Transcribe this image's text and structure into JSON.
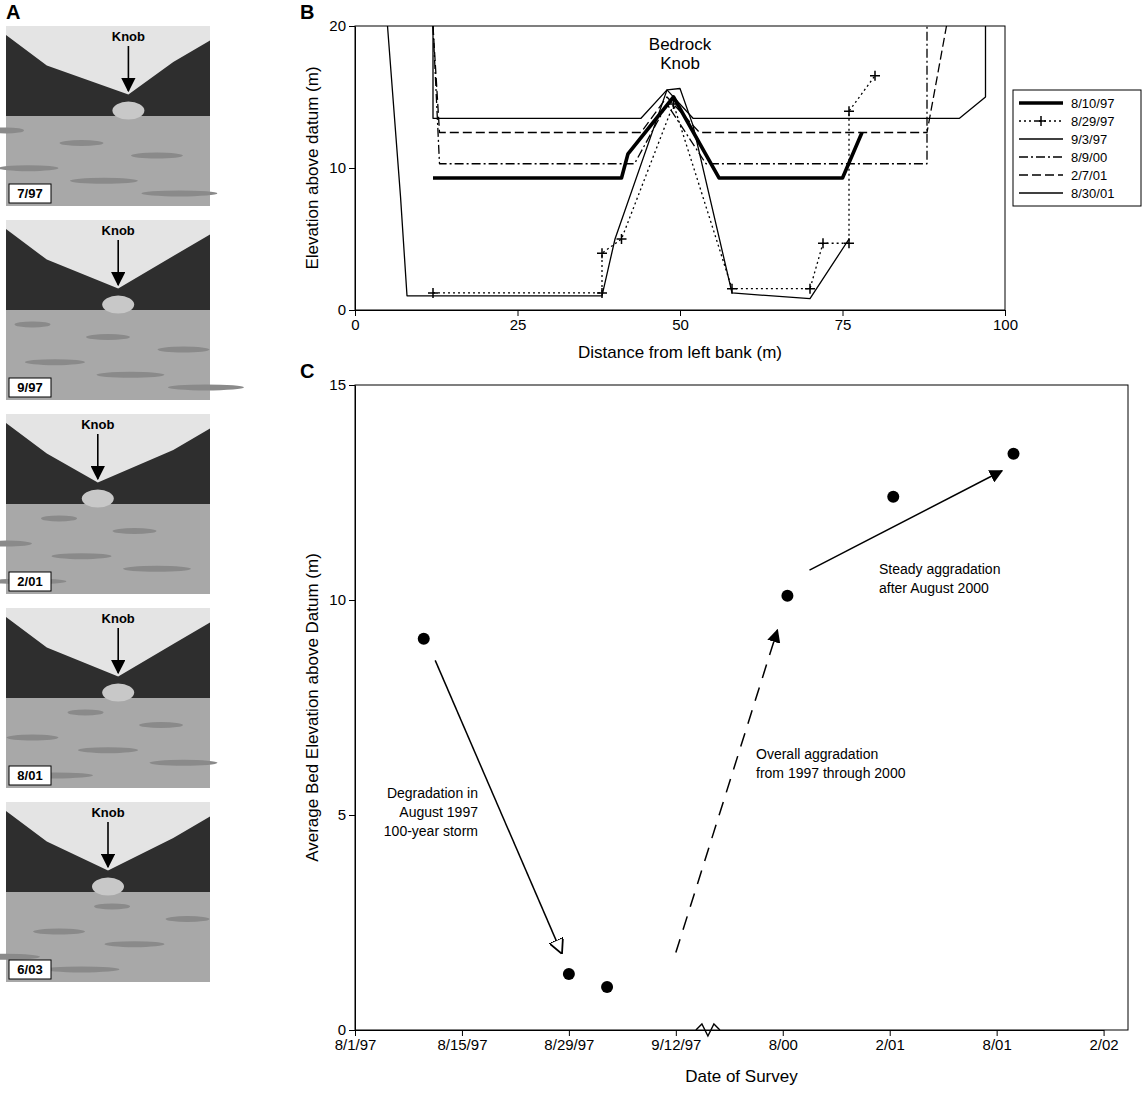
{
  "chart_data": [
    {
      "type": "photos",
      "panel": "A",
      "images": [
        {
          "date": "7/97",
          "label": "Knob"
        },
        {
          "date": "9/97",
          "label": "Knob"
        },
        {
          "date": "2/01",
          "label": "Knob"
        },
        {
          "date": "8/01",
          "label": "Knob"
        },
        {
          "date": "6/03",
          "label": "Knob"
        }
      ]
    },
    {
      "type": "line",
      "panel": "B",
      "annotation": [
        "Bedrock",
        "Knob"
      ],
      "x_label": "Distance from left bank (m)",
      "y_label": "Elevation above datum (m)",
      "xlim": [
        0,
        100
      ],
      "xticks": [
        0,
        25,
        50,
        75,
        100
      ],
      "ylim": [
        0,
        20
      ],
      "yticks": [
        0,
        10,
        20
      ],
      "legend": "right",
      "series": [
        {
          "name": "8/10/97",
          "color": "#000000",
          "line_style": "bold",
          "x": [
            12,
            41,
            42,
            49,
            56,
            75,
            78
          ],
          "values": [
            9.3,
            9.3,
            11,
            15,
            9.3,
            9.3,
            12.5
          ]
        },
        {
          "name": "8/29/97",
          "color": "#000000",
          "line_style": "dotted",
          "marker": "plus",
          "x": [
            12,
            38,
            38,
            41,
            49,
            58,
            70,
            72,
            76,
            76,
            80
          ],
          "values": [
            1.2,
            1.2,
            4,
            5,
            14.5,
            1.5,
            1.5,
            4.7,
            4.7,
            14,
            16.5
          ]
        },
        {
          "name": "9/3/97",
          "color": "#000000",
          "line_style": "solid",
          "x": [
            5,
            7,
            8,
            38,
            40,
            48,
            50,
            52,
            58,
            70,
            76
          ],
          "values": [
            20,
            8,
            1,
            1,
            5,
            15.5,
            15.6,
            13,
            1.2,
            0.8,
            5
          ]
        },
        {
          "name": "8/9/00",
          "color": "#000000",
          "line_style": "dashdot",
          "x": [
            12,
            13,
            43,
            48,
            54,
            88,
            88
          ],
          "values": [
            20,
            10.3,
            10.3,
            14.5,
            10.3,
            10.3,
            20
          ]
        },
        {
          "name": "2/7/01",
          "color": "#000000",
          "line_style": "dashed",
          "x": [
            12,
            13,
            44,
            48,
            53,
            88,
            91
          ],
          "values": [
            20,
            12.5,
            12.5,
            15,
            12.5,
            12.5,
            20
          ]
        },
        {
          "name": "8/30/01",
          "color": "#000000",
          "line_style": "solid",
          "x": [
            12,
            12,
            44,
            48,
            52,
            93,
            97,
            97
          ],
          "values": [
            20,
            13.5,
            13.5,
            15.5,
            13.5,
            13.5,
            15,
            20
          ]
        }
      ]
    },
    {
      "type": "scatter",
      "panel": "C",
      "x_label": "Date of Survey",
      "y_label": "Average Bed Elevation above Datum (m)",
      "color": "#000000",
      "x": [
        "1997-08-10",
        "1997-08-29",
        "1997-09-03",
        "2000-08-09",
        "2001-02-07",
        "2001-08-30"
      ],
      "values": [
        9.1,
        1.3,
        1.0,
        10.1,
        12.4,
        13.4
      ],
      "xlim": [
        "1997-08-01",
        "2002-03-15"
      ],
      "xticks": [
        {
          "value": "1997-08-01",
          "label": "8/1/97"
        },
        {
          "value": "1997-08-15",
          "label": "8/15/97"
        },
        {
          "value": "1997-08-29",
          "label": "8/29/97"
        },
        {
          "value": "1997-09-12",
          "label": "9/12/97"
        },
        {
          "value": "2000-08-01",
          "label": "8/00"
        },
        {
          "value": "2001-02-01",
          "label": "2/01"
        },
        {
          "value": "2001-08-01",
          "label": "8/01"
        },
        {
          "value": "2002-02-01",
          "label": "2/02"
        }
      ],
      "ylim": [
        0,
        15
      ],
      "yticks": [
        0,
        5,
        10,
        15
      ],
      "annotations": [
        [
          "Degradation in",
          "August 1997",
          "100-year storm"
        ],
        [
          "Overall aggradation",
          "from 1997 through 2000"
        ],
        [
          "Steady aggradation",
          "after August 2000"
        ]
      ]
    }
  ]
}
